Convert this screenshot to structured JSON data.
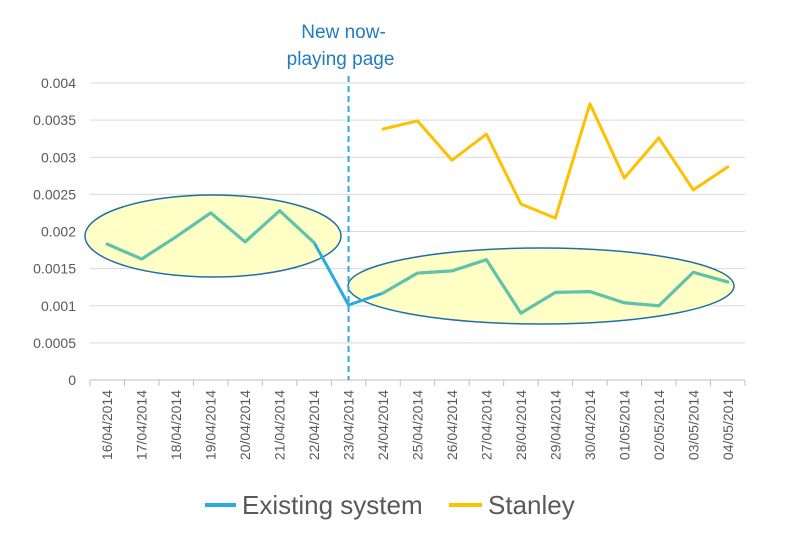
{
  "chart_data": {
    "type": "line",
    "categories": [
      "16/04/2014",
      "17/04/2014",
      "18/04/2014",
      "19/04/2014",
      "20/04/2014",
      "21/04/2014",
      "22/04/2014",
      "23/04/2014",
      "24/04/2014",
      "25/04/2014",
      "26/04/2014",
      "27/04/2014",
      "28/04/2014",
      "29/04/2014",
      "30/04/2014",
      "01/05/2014",
      "02/05/2014",
      "03/05/2014",
      "04/05/2014"
    ],
    "series": [
      {
        "name": "Existing system",
        "color": "#29ABE2",
        "values": [
          0.00183,
          0.00163,
          0.00193,
          0.00225,
          0.00186,
          0.00228,
          0.00185,
          0.00101,
          0.00117,
          0.00144,
          0.00147,
          0.00162,
          0.0009,
          0.00118,
          0.00119,
          0.00104,
          0.001,
          0.00145,
          0.00132
        ]
      },
      {
        "name": "Stanley",
        "color": "#FFC000",
        "values": [
          null,
          null,
          null,
          null,
          null,
          null,
          null,
          null,
          0.00338,
          0.00349,
          0.00296,
          0.00331,
          0.00237,
          0.00218,
          0.00372,
          0.00272,
          0.00326,
          0.00256,
          0.00287
        ]
      }
    ],
    "ylim": [
      0,
      0.004
    ],
    "yticks": [
      "0",
      "0.0005",
      "0.001",
      "0.0015",
      "0.002",
      "0.0025",
      "0.003",
      "0.0035",
      "0.004"
    ],
    "grid": true,
    "legend": "bottom",
    "annotation": {
      "lines": [
        "New now-",
        "playing page"
      ],
      "at_category": "23/04/2014",
      "color": "#1F7CC1"
    }
  }
}
